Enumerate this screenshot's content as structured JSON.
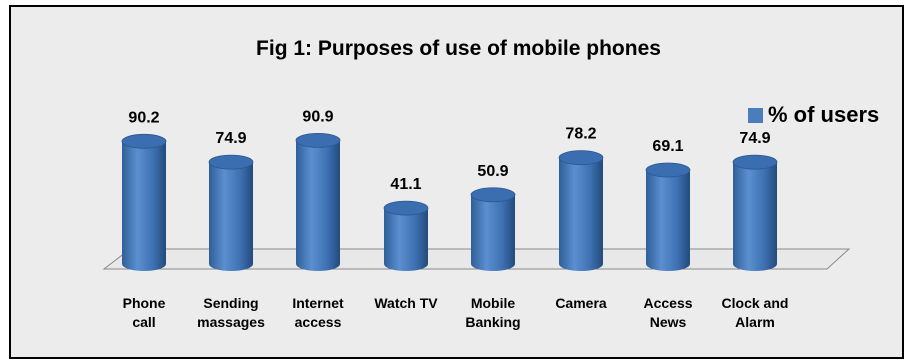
{
  "chart_data": {
    "type": "bar",
    "title": "Fig 1: Purposes of use of mobile phones",
    "xlabel": "",
    "ylabel": "",
    "categories": [
      [
        "Phone",
        "call"
      ],
      [
        "Sending",
        "massages"
      ],
      [
        "Internet",
        "access"
      ],
      [
        "Watch TV"
      ],
      [
        "Mobile",
        "Banking"
      ],
      [
        "Camera"
      ],
      [
        "Access",
        "News"
      ],
      [
        "Clock and",
        "Alarm"
      ]
    ],
    "series": [
      {
        "name": "% of users",
        "values": [
          90.2,
          74.9,
          90.9,
          41.1,
          50.9,
          78.2,
          69.1,
          74.9
        ],
        "color": "#4a7ebb"
      }
    ],
    "data_labels": [
      "90.2",
      "74.9",
      "90.9",
      "41.1",
      "50.9",
      "78.2",
      "69.1",
      "74.9"
    ],
    "ylim": [
      0,
      100
    ],
    "grid": false,
    "legend_position": "top-right",
    "bar_shape": "3d-cylinder"
  }
}
